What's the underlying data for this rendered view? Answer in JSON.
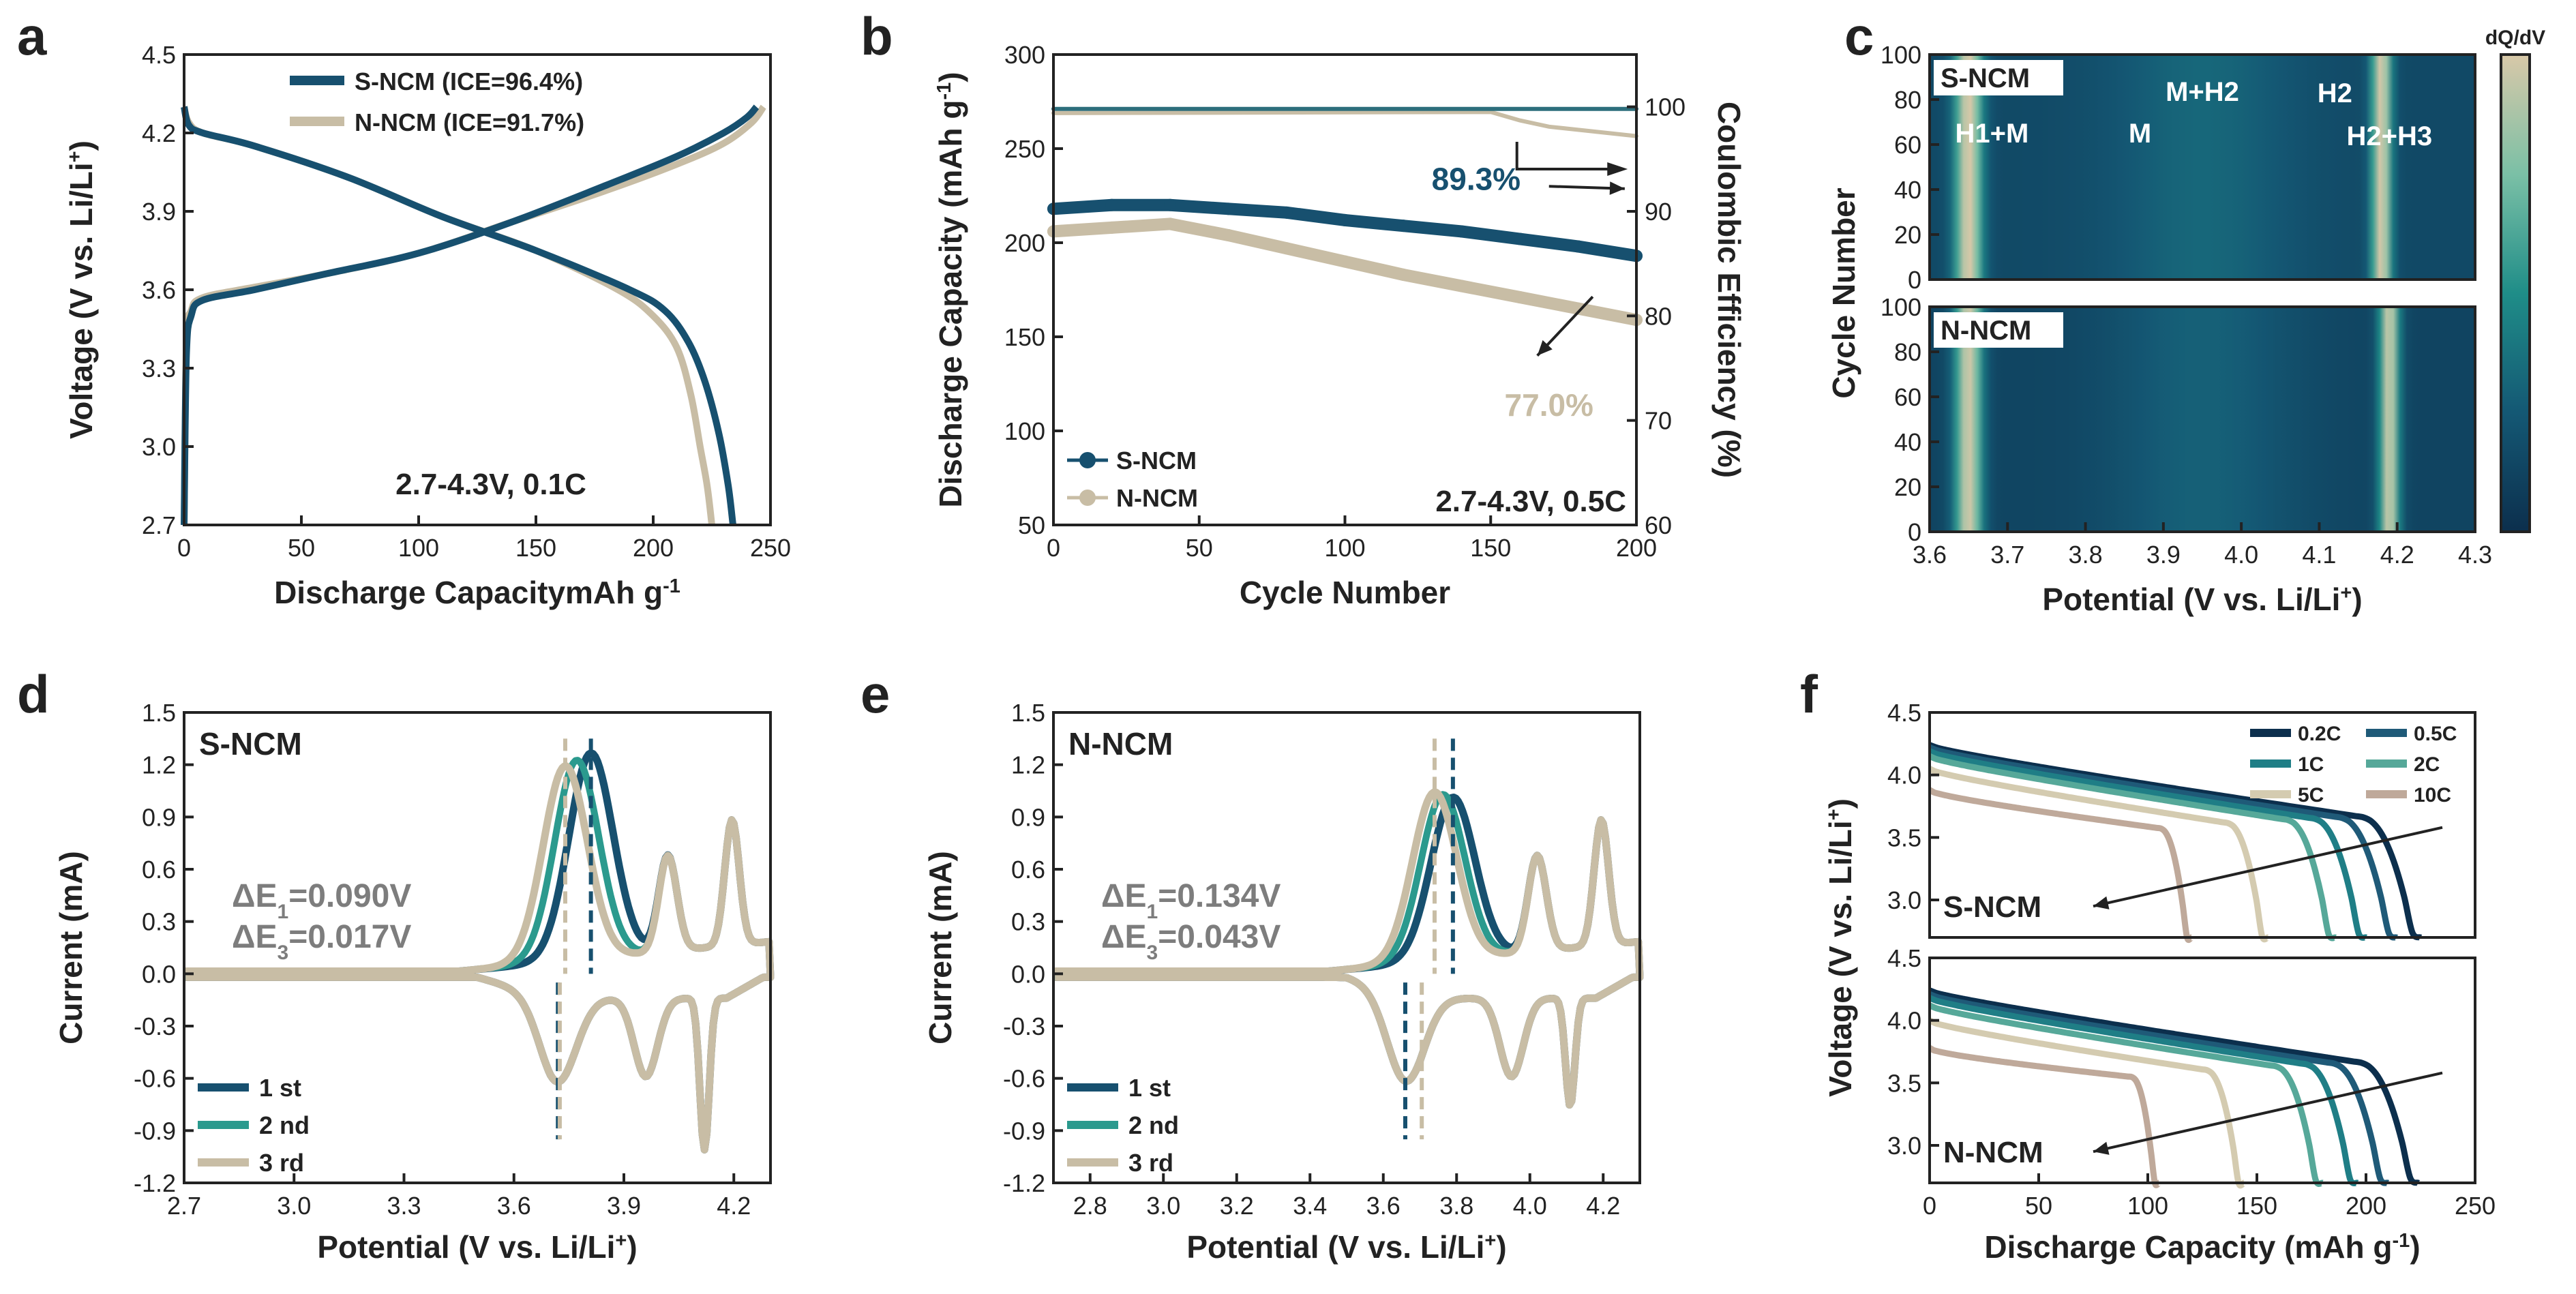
{
  "colors": {
    "s_ncm": "#17506f",
    "n_ncm": "#c8bda5",
    "cycle2": "#2b9a8e",
    "axis": "#222222",
    "ann_gray": "#7d7d7d",
    "cmap": [
      "#0c2f4d",
      "#145874",
      "#1f8d88",
      "#7bc0a6",
      "#d8c8a8"
    ]
  },
  "chart_data": [
    {
      "panel": "a",
      "type": "line",
      "xlabel": "Discharge CapacitymAh g-1",
      "ylabel": "Voltage (V vs. Li/Li+)",
      "xlim": [
        0,
        250
      ],
      "ylim": [
        2.7,
        4.5
      ],
      "xticks": [
        "0",
        "50",
        "100",
        "150",
        "200",
        "250"
      ],
      "yticks": [
        "2.7",
        "3.0",
        "3.3",
        "3.6",
        "3.9",
        "4.2",
        "4.5"
      ],
      "legend": [
        "S-NCM (ICE=96.4%)",
        "N-NCM (ICE=91.7%)"
      ],
      "annotation": "2.7-4.3V, 0.1C",
      "series": [
        {
          "name": "S-NCM charge",
          "x": [
            0,
            1,
            3,
            8,
            30,
            60,
            100,
            140,
            180,
            210,
            230,
            240,
            244
          ],
          "y": [
            2.7,
            3.35,
            3.5,
            3.56,
            3.6,
            3.66,
            3.74,
            3.86,
            4.0,
            4.11,
            4.2,
            4.26,
            4.3
          ]
        },
        {
          "name": "S-NCM discharge",
          "x": [
            0,
            2,
            8,
            30,
            70,
            110,
            150,
            190,
            205,
            215,
            222,
            228,
            232,
            234
          ],
          "y": [
            4.3,
            4.23,
            4.2,
            4.15,
            4.03,
            3.88,
            3.75,
            3.6,
            3.52,
            3.4,
            3.25,
            3.05,
            2.85,
            2.7
          ]
        },
        {
          "name": "N-NCM charge",
          "x": [
            0,
            1,
            3,
            8,
            30,
            60,
            100,
            140,
            180,
            210,
            230,
            242,
            247
          ],
          "y": [
            2.7,
            3.4,
            3.52,
            3.57,
            3.61,
            3.66,
            3.74,
            3.86,
            3.98,
            4.08,
            4.16,
            4.24,
            4.3
          ]
        },
        {
          "name": "N-NCM discharge",
          "x": [
            0,
            2,
            8,
            30,
            70,
            110,
            150,
            185,
            200,
            210,
            216,
            220,
            223,
            225
          ],
          "y": [
            4.3,
            4.24,
            4.2,
            4.15,
            4.03,
            3.88,
            3.75,
            3.6,
            3.5,
            3.38,
            3.2,
            3.0,
            2.85,
            2.7
          ]
        }
      ]
    },
    {
      "panel": "b",
      "type": "scatter",
      "xlabel": "Cycle Number",
      "ylabel": "Discharge Capacity (mAh g-1)",
      "ylabel_right": "Coulombic Efficiency (%)",
      "xlim": [
        0,
        200
      ],
      "ylim": [
        50,
        300
      ],
      "ylim_right": [
        60,
        105
      ],
      "xticks": [
        "0",
        "50",
        "100",
        "150",
        "200"
      ],
      "yticks": [
        "50",
        "100",
        "150",
        "200",
        "250",
        "300"
      ],
      "yticks_right": [
        "60",
        "70",
        "80",
        "90",
        "100"
      ],
      "legend": [
        "S-NCM",
        "N-NCM"
      ],
      "annotations": [
        "89.3%",
        "77.0%",
        "2.7-4.3V, 0.5C"
      ],
      "series": [
        {
          "name": "S-NCM capacity",
          "x": [
            0,
            20,
            40,
            60,
            80,
            100,
            120,
            140,
            160,
            180,
            200
          ],
          "y": [
            218,
            220,
            220,
            218,
            216,
            212,
            209,
            206,
            202,
            198,
            193
          ]
        },
        {
          "name": "N-NCM capacity",
          "x": [
            0,
            20,
            40,
            60,
            80,
            100,
            120,
            140,
            160,
            180,
            200
          ],
          "y": [
            206,
            208,
            210,
            204,
            197,
            190,
            183,
            177,
            171,
            165,
            159
          ]
        },
        {
          "name": "S-NCM CE",
          "x": [
            0,
            200
          ],
          "y": [
            99.8,
            99.8
          ]
        },
        {
          "name": "N-NCM CE",
          "x": [
            0,
            150,
            160,
            170,
            180,
            190,
            200
          ],
          "y": [
            99.4,
            99.5,
            98.7,
            98.1,
            97.8,
            97.5,
            97.2
          ]
        }
      ]
    },
    {
      "panel": "c",
      "type": "heatmap",
      "xlabel": "Potential (V vs. Li/Li+)",
      "ylabel": "Cycle Number",
      "colorbar_label": "dQ/dV",
      "xlim": [
        3.6,
        4.3
      ],
      "ylim": [
        0,
        100
      ],
      "xticks": [
        "3.6",
        "3.7",
        "3.8",
        "3.9",
        "4.0",
        "4.1",
        "4.2",
        "4.3"
      ],
      "yticks": [
        "0",
        "20",
        "40",
        "60",
        "80",
        "100"
      ],
      "maps": [
        {
          "name": "S-NCM",
          "peaks_v": [
            3.65,
            4.18
          ]
        },
        {
          "name": "N-NCM",
          "peaks_v": [
            3.65,
            4.19
          ]
        }
      ],
      "phase_labels": [
        "H1+M",
        "M",
        "M+H2",
        "H2",
        "H2+H3"
      ]
    },
    {
      "panel": "d",
      "type": "line",
      "title": "S-NCM",
      "xlabel": "Potential (V vs. Li/Li+)",
      "ylabel": "Current (mA)",
      "xlim": [
        2.7,
        4.3
      ],
      "ylim": [
        -1.2,
        1.5
      ],
      "xticks": [
        "2.7",
        "3.0",
        "3.3",
        "3.6",
        "3.9",
        "4.2"
      ],
      "yticks": [
        "-1.2",
        "-0.9",
        "-0.6",
        "-0.3",
        "0.0",
        "0.3",
        "0.6",
        "0.9",
        "1.2",
        "1.5"
      ],
      "legend": [
        "1 st",
        "2 nd",
        "3 rd"
      ],
      "delta_e1": "ΔE1=0.090V",
      "delta_e3": "ΔE3=0.017V",
      "ox_peaks": [
        {
          "cycle": "1 st",
          "v": 3.81,
          "i": 1.18
        },
        {
          "cycle": "3 rd",
          "v": 3.74,
          "i": 1.12
        }
      ],
      "red_peaks": [
        {
          "v": 3.72,
          "i": -0.48
        },
        {
          "v": 3.96,
          "i": -0.45
        },
        {
          "v": 4.12,
          "i": -0.87
        }
      ]
    },
    {
      "panel": "e",
      "type": "line",
      "title": "N-NCM",
      "xlabel": "Potential (V vs. Li/Li+)",
      "ylabel": "Current (mA)",
      "xlim": [
        2.7,
        4.3
      ],
      "ylim": [
        -1.2,
        1.5
      ],
      "xticks": [
        "2.8",
        "3.0",
        "3.2",
        "3.4",
        "3.6",
        "3.8",
        "4.0",
        "4.2"
      ],
      "yticks": [
        "-1.2",
        "-0.9",
        "-0.6",
        "-0.3",
        "0.0",
        "0.3",
        "0.6",
        "0.9",
        "1.2",
        "1.5"
      ],
      "legend": [
        "1 st",
        "2 nd",
        "3 rd"
      ],
      "delta_e1": "ΔE1=0.134V",
      "delta_e3": "ΔE3=0.043V",
      "ox_peaks": [
        {
          "cycle": "1 st",
          "v": 3.79,
          "i": 0.93
        },
        {
          "cycle": "3 rd",
          "v": 3.74,
          "i": 0.97
        }
      ],
      "red_peaks": [
        {
          "v": 3.66,
          "i": -0.5
        },
        {
          "v": 3.95,
          "i": -0.45
        },
        {
          "v": 4.11,
          "i": -0.62
        }
      ]
    },
    {
      "panel": "f",
      "type": "line",
      "xlabel": "Discharge Capacity (mAh g-1)",
      "ylabel": "Voltage (V vs. Li/Li+)",
      "xlim": [
        0,
        250
      ],
      "ylim": [
        2.7,
        4.5
      ],
      "xticks": [
        "0",
        "50",
        "100",
        "150",
        "200",
        "250"
      ],
      "yticks": [
        "3.0",
        "3.5",
        "4.0",
        "4.5"
      ],
      "legend": [
        "0.2C",
        "0.5C",
        "1C",
        "2C",
        "5C",
        "10C"
      ],
      "series": [
        {
          "sample": "S-NCM",
          "rate": "0.2C",
          "v0": 4.24,
          "cap": 225
        },
        {
          "sample": "S-NCM",
          "rate": "0.5C",
          "v0": 4.22,
          "cap": 214
        },
        {
          "sample": "S-NCM",
          "rate": "1C",
          "v0": 4.19,
          "cap": 200
        },
        {
          "sample": "S-NCM",
          "rate": "2C",
          "v0": 4.15,
          "cap": 186
        },
        {
          "sample": "S-NCM",
          "rate": "5C",
          "v0": 4.05,
          "cap": 155
        },
        {
          "sample": "S-NCM",
          "rate": "10C",
          "v0": 3.88,
          "cap": 120
        },
        {
          "sample": "N-NCM",
          "rate": "0.2C",
          "v0": 4.24,
          "cap": 224
        },
        {
          "sample": "N-NCM",
          "rate": "0.5C",
          "v0": 4.21,
          "cap": 210
        },
        {
          "sample": "N-NCM",
          "rate": "1C",
          "v0": 4.18,
          "cap": 196
        },
        {
          "sample": "N-NCM",
          "rate": "2C",
          "v0": 4.12,
          "cap": 180
        },
        {
          "sample": "N-NCM",
          "rate": "5C",
          "v0": 4.0,
          "cap": 144
        },
        {
          "sample": "N-NCM",
          "rate": "10C",
          "v0": 3.78,
          "cap": 105
        }
      ]
    }
  ]
}
